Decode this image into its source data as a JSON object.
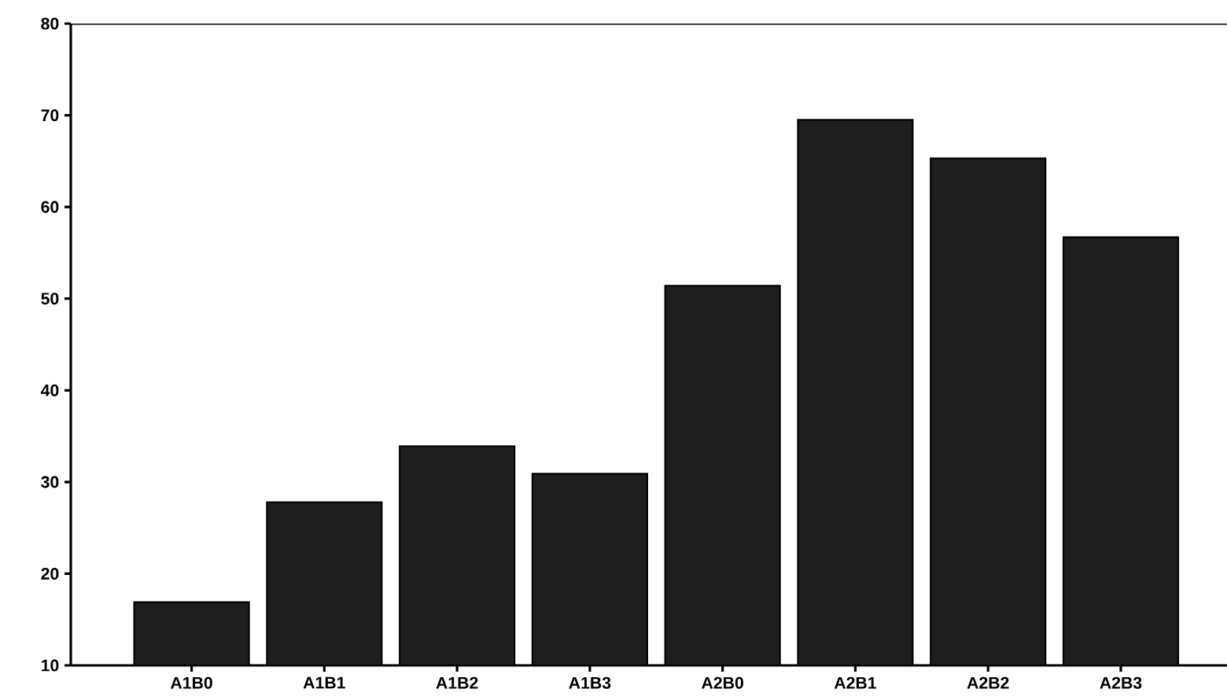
{
  "chart_data": {
    "type": "bar",
    "categories": [
      "A1B0",
      "A1B1",
      "A1B2",
      "A1B3",
      "A2B0",
      "A2B1",
      "A2B2",
      "A2B3"
    ],
    "values": [
      16.9,
      27.8,
      33.9,
      30.9,
      51.4,
      69.5,
      65.3,
      56.7
    ],
    "color": "#1e1e1e",
    "ylim": [
      10,
      80
    ],
    "yticks": [
      10,
      20,
      30,
      40,
      50,
      60,
      70,
      80
    ]
  }
}
